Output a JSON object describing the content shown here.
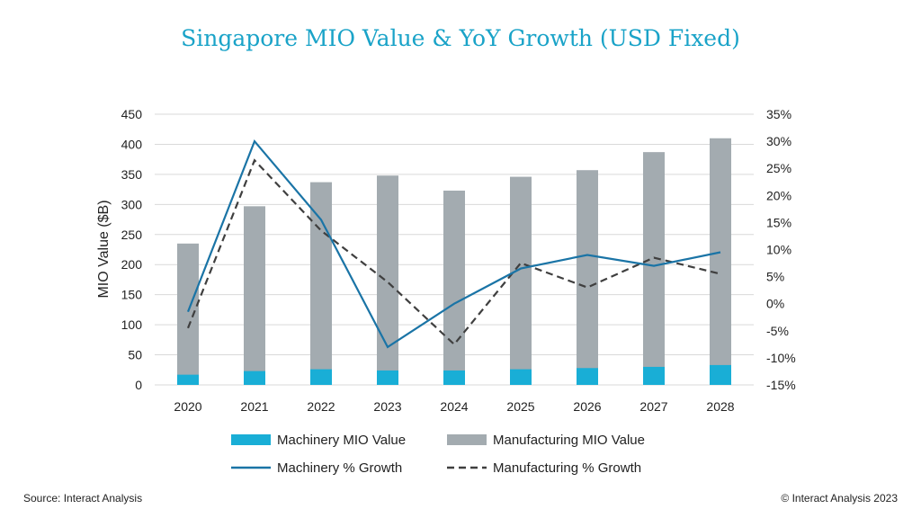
{
  "title": "Singapore MIO Value & YoY Growth (USD Fixed)",
  "footer": {
    "source": "Source: Interact Analysis",
    "copyright": "© Interact Analysis 2023"
  },
  "colors": {
    "machinery_bar": "#19aed6",
    "manufacturing_bar": "#a3abb0",
    "machinery_line": "#1a74a6",
    "manufacturing_line": "#3f3f3f",
    "gridline": "#d9d9d9"
  },
  "chart_data": {
    "type": "bar",
    "title": "Singapore MIO Value & YoY Growth (USD Fixed)",
    "categories": [
      "2020",
      "2021",
      "2022",
      "2023",
      "2024",
      "2025",
      "2026",
      "2027",
      "2028"
    ],
    "ylabel": "MIO Value ($B)",
    "ylim": [
      0,
      450
    ],
    "yticks": [
      0,
      50,
      100,
      150,
      200,
      250,
      300,
      350,
      400,
      450
    ],
    "y2lim": [
      -15,
      35
    ],
    "y2ticks": [
      "-15%",
      "-10%",
      "-5%",
      "0%",
      "5%",
      "10%",
      "15%",
      "20%",
      "25%",
      "30%",
      "35%"
    ],
    "y2values": [
      -15,
      -10,
      -5,
      0,
      5,
      10,
      15,
      20,
      25,
      30,
      35
    ],
    "grid": true,
    "legend_position": "bottom",
    "series": [
      {
        "name": "Machinery MIO Value",
        "kind": "bar",
        "axis": "left",
        "values": [
          17,
          23,
          26,
          24,
          24,
          26,
          28,
          30,
          33
        ]
      },
      {
        "name": "Manufacturing MIO Value",
        "kind": "bar",
        "axis": "left",
        "values": [
          235,
          297,
          337,
          348,
          323,
          346,
          357,
          387,
          410
        ]
      },
      {
        "name": "Machinery % Growth",
        "kind": "line",
        "axis": "right",
        "dash": false,
        "values": [
          -1.5,
          30,
          15.5,
          -8,
          0,
          6.5,
          9,
          7,
          9.5
        ]
      },
      {
        "name": "Manufacturing % Growth",
        "kind": "line",
        "axis": "right",
        "dash": true,
        "values": [
          -4.5,
          26.5,
          13.5,
          4,
          -7.5,
          7.5,
          3,
          8.5,
          5.5
        ]
      }
    ]
  }
}
